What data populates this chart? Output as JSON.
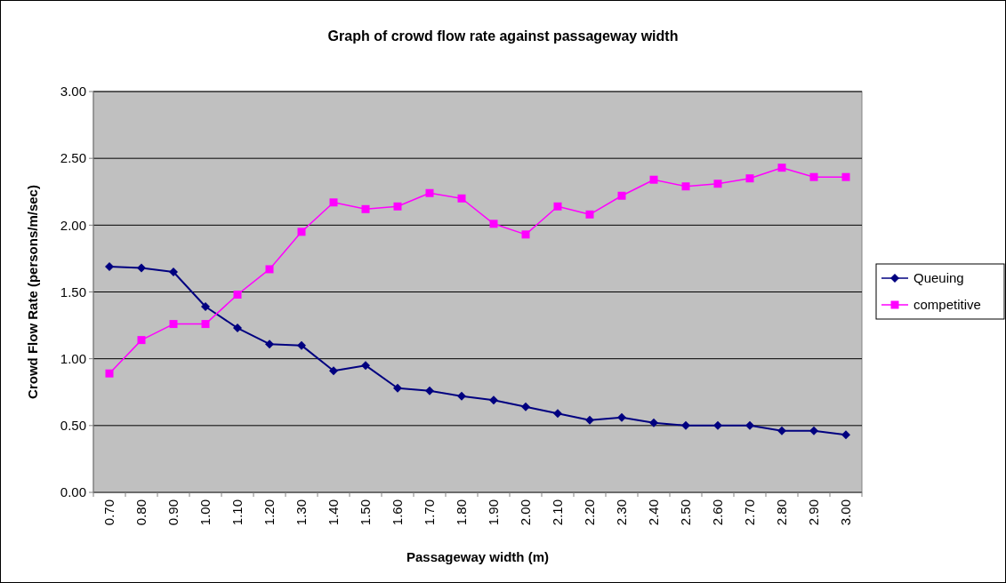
{
  "chart_data": {
    "type": "line",
    "title": "Graph of crowd flow rate against passageway width",
    "xlabel": "Passageway width (m)",
    "ylabel": "Crowd Flow Rate (persons/m/sec)",
    "categories": [
      "0.70",
      "0.80",
      "0.90",
      "1.00",
      "1.10",
      "1.20",
      "1.30",
      "1.40",
      "1.50",
      "1.60",
      "1.70",
      "1.80",
      "1.90",
      "2.00",
      "2.10",
      "2.20",
      "2.30",
      "2.40",
      "2.50",
      "2.60",
      "2.70",
      "2.80",
      "2.90",
      "3.00"
    ],
    "series": [
      {
        "name": "Queuing",
        "color": "#000080",
        "marker": "diamond",
        "values": [
          1.69,
          1.68,
          1.65,
          1.39,
          1.23,
          1.11,
          1.1,
          0.91,
          0.95,
          0.78,
          0.76,
          0.72,
          0.69,
          0.64,
          0.59,
          0.54,
          0.56,
          0.52,
          0.5,
          0.5,
          0.5,
          0.46,
          0.46,
          0.43
        ]
      },
      {
        "name": "competitive",
        "color": "#ff00ff",
        "marker": "square",
        "values": [
          0.89,
          1.14,
          1.26,
          1.26,
          1.48,
          1.67,
          1.95,
          2.17,
          2.12,
          2.14,
          2.24,
          2.2,
          2.01,
          1.93,
          2.14,
          2.08,
          2.22,
          2.34,
          2.29,
          2.31,
          2.35,
          2.43,
          2.36,
          2.36
        ]
      }
    ],
    "ylim": [
      0,
      3
    ],
    "yticks": [
      {
        "value": 0,
        "label": "0.00"
      },
      {
        "value": 0.5,
        "label": "0.50"
      },
      {
        "value": 1,
        "label": "1.00"
      },
      {
        "value": 1.5,
        "label": "1.50"
      },
      {
        "value": 2,
        "label": "2.00"
      },
      {
        "value": 2.5,
        "label": "2.50"
      },
      {
        "value": 3,
        "label": "3.00"
      }
    ],
    "grid": "y",
    "legend": "right"
  }
}
